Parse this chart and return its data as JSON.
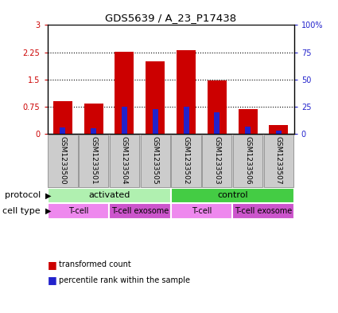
{
  "title": "GDS5639 / A_23_P17438",
  "samples": [
    "GSM1233500",
    "GSM1233501",
    "GSM1233504",
    "GSM1233505",
    "GSM1233502",
    "GSM1233503",
    "GSM1233506",
    "GSM1233507"
  ],
  "transformed_count": [
    0.9,
    0.85,
    2.27,
    2.0,
    2.32,
    1.47,
    0.68,
    0.25
  ],
  "percentile_rank": [
    0.18,
    0.17,
    0.75,
    0.7,
    0.75,
    0.6,
    0.2,
    0.1
  ],
  "bar_color": "#cc0000",
  "pct_color": "#2222cc",
  "ylim_left": [
    0,
    3
  ],
  "ylim_right": [
    0,
    100
  ],
  "yticks_left": [
    0,
    0.75,
    1.5,
    2.25,
    3
  ],
  "yticks_right": [
    0,
    25,
    50,
    75,
    100
  ],
  "ytick_labels_left": [
    "0",
    "0.75",
    "1.5",
    "2.25",
    "3"
  ],
  "ytick_labels_right": [
    "0",
    "25",
    "50",
    "75",
    "100%"
  ],
  "protocol_groups": [
    {
      "label": "activated",
      "start": 0,
      "end": 4,
      "color": "#b0f0b0"
    },
    {
      "label": "control",
      "start": 4,
      "end": 8,
      "color": "#44cc44"
    }
  ],
  "cell_type_groups": [
    {
      "label": "T-cell",
      "start": 0,
      "end": 2,
      "color": "#ee88ee"
    },
    {
      "label": "T-cell exosome",
      "start": 2,
      "end": 4,
      "color": "#cc55cc"
    },
    {
      "label": "T-cell",
      "start": 4,
      "end": 6,
      "color": "#ee88ee"
    },
    {
      "label": "T-cell exosome",
      "start": 6,
      "end": 8,
      "color": "#cc55cc"
    }
  ],
  "protocol_label": "protocol",
  "cell_type_label": "cell type",
  "legend_items": [
    {
      "label": "transformed count",
      "color": "#cc0000"
    },
    {
      "label": "percentile rank within the sample",
      "color": "#2222cc"
    }
  ],
  "tick_color_left": "#cc0000",
  "tick_color_right": "#2222cc",
  "sample_area_color": "#cccccc",
  "sample_border_color": "#999999"
}
